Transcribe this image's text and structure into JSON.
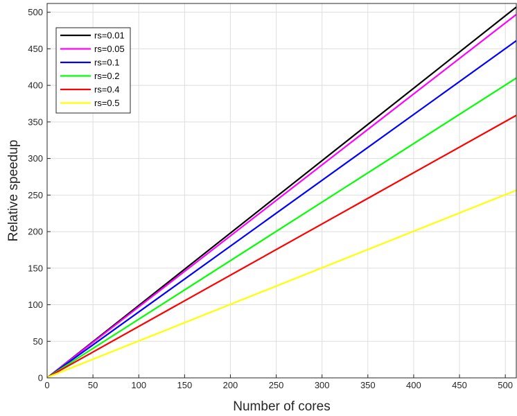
{
  "chart_data": {
    "type": "line",
    "xlabel": "Number of cores",
    "ylabel": "Relative speedup",
    "xlim": [
      0,
      512
    ],
    "ylim": [
      0,
      512
    ],
    "xticks": [
      0,
      50,
      100,
      150,
      200,
      250,
      300,
      350,
      400,
      450,
      500
    ],
    "yticks": [
      0,
      50,
      100,
      150,
      200,
      250,
      300,
      350,
      400,
      450,
      500
    ],
    "grid": true,
    "legend_position": "top-left",
    "series": [
      {
        "name": "rs=0.01",
        "color": "#000000",
        "x": [
          1,
          512
        ],
        "y": [
          1,
          507.0
        ]
      },
      {
        "name": "rs=0.05",
        "color": "#ff00ff",
        "x": [
          1,
          512
        ],
        "y": [
          1,
          497.0
        ]
      },
      {
        "name": "rs=0.1",
        "color": "#0000ff",
        "x": [
          1,
          512
        ],
        "y": [
          1,
          461.0
        ]
      },
      {
        "name": "rs=0.2",
        "color": "#00ff00",
        "x": [
          1,
          512
        ],
        "y": [
          1,
          410.0
        ]
      },
      {
        "name": "rs=0.4",
        "color": "#ff0000",
        "x": [
          1,
          512
        ],
        "y": [
          1,
          359.0
        ]
      },
      {
        "name": "rs=0.5",
        "color": "#ffff00",
        "x": [
          1,
          512
        ],
        "y": [
          1,
          256.5
        ]
      }
    ]
  }
}
